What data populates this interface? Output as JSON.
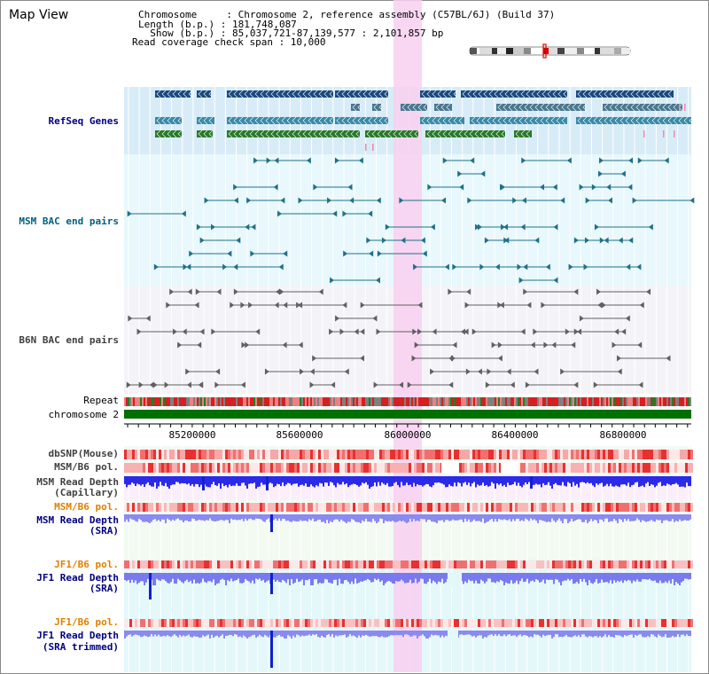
{
  "view": {
    "title": "Map View"
  },
  "info": {
    "chromosome_line": "Chromosome     : Chromosome 2, reference assembly (C57BL/6J) (Build 37)",
    "length_line": "Length (b.p.) : 181,748,087",
    "show_line": "  Show (b.p.) : 85,037,721-87,139,577 : 2,101,857 bp",
    "read_coverage_line": "Read coverage check span : 10,000"
  },
  "tracks": {
    "refseq": "RefSeq Genes",
    "msm_bac": "MSM BAC end pairs",
    "b6n_bac": "B6N BAC end pairs",
    "repeat": "Repeat",
    "chromosome": "chromosome 2",
    "dbsnp": "dbSNP(Mouse)",
    "msm_b6_pol_1": "MSM/B6 pol.",
    "msm_depth_cap_1": "MSM Read Depth",
    "msm_depth_cap_2": "(Capillary)",
    "msm_b6_pol_2": "MSM/B6 pol.",
    "msm_depth_sra_1": "MSM Read Depth",
    "msm_depth_sra_2": "(SRA)",
    "jf1_b6_pol_1": "JF1/B6 pol.",
    "jf1_depth_sra_1": "JF1 Read Depth",
    "jf1_depth_sra_2": "(SRA)",
    "jf1_b6_pol_2": "JF1/B6 pol.",
    "jf1_depth_trim_1": "JF1 Read Depth",
    "jf1_depth_trim_2": "(SRA trimmed)"
  },
  "axis": {
    "ticks": [
      "85200000",
      "85600000",
      "86000000",
      "86400000",
      "86800000"
    ]
  },
  "colors": {
    "refseq_label": "#000080",
    "msm_label": "#006080",
    "b6n_label": "#404040",
    "msm_pol_label": "#e08000",
    "highlight": "#f8d0f0",
    "chromosome_bar": "#007000",
    "depth_blue": "#2a2ae8"
  }
}
